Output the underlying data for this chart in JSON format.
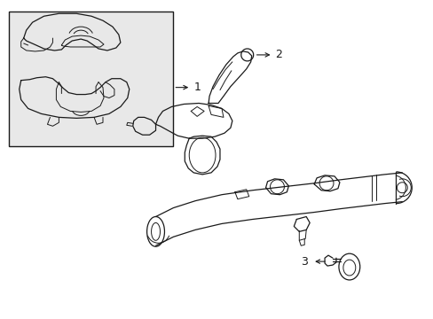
{
  "background_color": "#ffffff",
  "line_color": "#1a1a1a",
  "box_bg": "#e8e8e8",
  "label1": "1",
  "label2": "2",
  "label3": "3",
  "fig_width": 4.89,
  "fig_height": 3.6,
  "dpi": 100
}
